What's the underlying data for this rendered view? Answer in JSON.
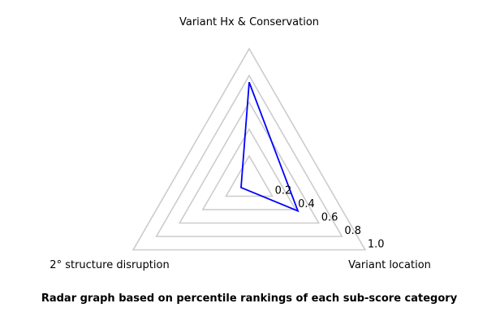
{
  "chart_data": {
    "type": "radar",
    "axes": [
      "Variant Hx & Conservation",
      "Variant location",
      "2° structure disruption"
    ],
    "ticks": [
      0.2,
      0.4,
      0.6,
      0.8,
      1.0
    ],
    "tick_labels": [
      "0.2",
      "0.4",
      "0.6",
      "0.8",
      "1.0"
    ],
    "rlim": [
      0,
      1.0
    ],
    "series": [
      {
        "values": [
          0.75,
          0.42,
          0.07
        ]
      }
    ],
    "colors": {
      "series": "#0000ff",
      "grid": "#cccccc"
    },
    "caption": "Radar graph based on percentile rankings of each sub-score category"
  }
}
